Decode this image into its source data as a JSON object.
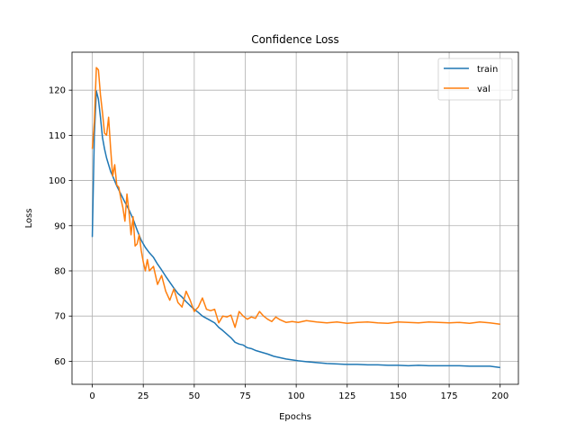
{
  "chart_data": {
    "type": "line",
    "title": "Confidence Loss",
    "xlabel": "Epochs",
    "ylabel": "Loss",
    "xlim": [
      -9.95,
      208.95
    ],
    "ylim": [
      54.9,
      128.4
    ],
    "xticks": [
      0,
      25,
      50,
      75,
      100,
      125,
      150,
      175,
      200
    ],
    "yticks": [
      60,
      70,
      80,
      90,
      100,
      110,
      120
    ],
    "grid": true,
    "legend_position": "top-right",
    "series": [
      {
        "name": "train",
        "color": "#1f77b4",
        "x": [
          0,
          1,
          2,
          3,
          4,
          5,
          6,
          7,
          8,
          9,
          10,
          12,
          14,
          16,
          18,
          20,
          22,
          24,
          26,
          28,
          30,
          32,
          34,
          36,
          38,
          40,
          42,
          44,
          46,
          48,
          50,
          52,
          54,
          56,
          58,
          60,
          62,
          64,
          66,
          68,
          70,
          72,
          74,
          76,
          78,
          80,
          83,
          86,
          89,
          92,
          95,
          98,
          101,
          105,
          110,
          115,
          120,
          125,
          130,
          135,
          140,
          145,
          150,
          155,
          160,
          165,
          170,
          175,
          180,
          185,
          190,
          195,
          200
        ],
        "y": [
          87.5,
          110.0,
          119.8,
          118.0,
          114.0,
          109.5,
          107.0,
          105.0,
          103.5,
          102.0,
          101.0,
          98.8,
          97.0,
          95.2,
          93.5,
          91.5,
          89.0,
          86.8,
          85.2,
          84.0,
          83.0,
          81.5,
          80.2,
          78.8,
          77.5,
          76.2,
          75.0,
          74.2,
          73.2,
          72.3,
          71.5,
          70.8,
          70.0,
          69.5,
          69.0,
          68.5,
          67.5,
          66.8,
          66.0,
          65.2,
          64.2,
          63.8,
          63.6,
          63.0,
          62.8,
          62.4,
          62.0,
          61.6,
          61.1,
          60.8,
          60.5,
          60.3,
          60.1,
          59.9,
          59.7,
          59.5,
          59.4,
          59.3,
          59.3,
          59.2,
          59.2,
          59.1,
          59.1,
          59.0,
          59.1,
          59.0,
          59.0,
          59.0,
          59.0,
          58.9,
          58.9,
          58.9,
          58.6
        ]
      },
      {
        "name": "val",
        "color": "#ff7f0e",
        "x": [
          0,
          1,
          2,
          3,
          4,
          5,
          6,
          7,
          8,
          9,
          10,
          11,
          12,
          13,
          14,
          15,
          16,
          17,
          18,
          19,
          20,
          21,
          22,
          23,
          24,
          25,
          26,
          27,
          28,
          30,
          32,
          34,
          36,
          38,
          40,
          42,
          44,
          46,
          48,
          50,
          52,
          54,
          56,
          58,
          60,
          62,
          64,
          66,
          68,
          70,
          72,
          74,
          76,
          78,
          80,
          82,
          84,
          86,
          88,
          90,
          92,
          95,
          98,
          101,
          105,
          110,
          115,
          120,
          125,
          130,
          135,
          140,
          145,
          150,
          155,
          160,
          165,
          170,
          175,
          180,
          185,
          190,
          195,
          200
        ],
        "y": [
          107.0,
          113.0,
          125.0,
          124.5,
          119.0,
          115.0,
          110.5,
          110.0,
          114.0,
          107.0,
          101.0,
          103.5,
          99.0,
          98.5,
          96.0,
          94.0,
          91.0,
          97.0,
          93.0,
          88.0,
          92.0,
          85.5,
          86.0,
          88.0,
          84.5,
          82.0,
          80.0,
          82.5,
          80.0,
          81.0,
          77.0,
          79.0,
          75.5,
          73.5,
          76.0,
          73.0,
          72.0,
          75.5,
          73.5,
          71.0,
          72.0,
          74.0,
          71.5,
          71.2,
          71.5,
          68.5,
          70.0,
          69.8,
          70.2,
          67.5,
          71.0,
          70.0,
          69.3,
          69.8,
          69.5,
          71.0,
          70.0,
          69.3,
          68.8,
          69.8,
          69.2,
          68.6,
          68.8,
          68.6,
          69.0,
          68.7,
          68.5,
          68.7,
          68.4,
          68.6,
          68.7,
          68.5,
          68.4,
          68.7,
          68.6,
          68.5,
          68.7,
          68.6,
          68.5,
          68.6,
          68.4,
          68.7,
          68.5,
          68.2
        ]
      }
    ]
  }
}
